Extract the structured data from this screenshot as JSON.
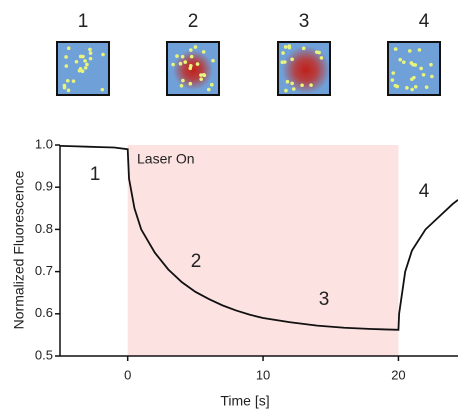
{
  "panels": {
    "labels": [
      "1",
      "2",
      "3",
      "4"
    ]
  },
  "chart_data": {
    "type": "line",
    "x_label": "Time [s]",
    "y_label": "Normalized Fluorescence",
    "x": [
      -5,
      -4,
      -3,
      -2,
      -1,
      0,
      0.1,
      0.5,
      1,
      2,
      3,
      4,
      5,
      6,
      7,
      8,
      9,
      10,
      12,
      14,
      16,
      18,
      20,
      20.05,
      20.5,
      21,
      22,
      23,
      24,
      24.4
    ],
    "values": [
      0.998,
      0.997,
      0.996,
      0.995,
      0.994,
      0.99,
      0.92,
      0.85,
      0.8,
      0.745,
      0.705,
      0.675,
      0.652,
      0.635,
      0.62,
      0.608,
      0.598,
      0.59,
      0.58,
      0.572,
      0.567,
      0.564,
      0.562,
      0.6,
      0.7,
      0.75,
      0.8,
      0.83,
      0.86,
      0.87
    ],
    "color": "#111111",
    "xlim": [
      -5,
      24.4
    ],
    "ylim": [
      0.5,
      1.0
    ],
    "xticks": [
      0,
      10,
      20
    ],
    "yticks": [
      0.5,
      0.6,
      0.7,
      0.8,
      0.9,
      {
        "value": 1.0,
        "label": "1.0"
      }
    ],
    "highlight": {
      "from": 0,
      "to": 20,
      "color": "#fde2e2"
    },
    "annotations": [
      "Laser On",
      "1",
      "2",
      "3",
      "4"
    ]
  }
}
